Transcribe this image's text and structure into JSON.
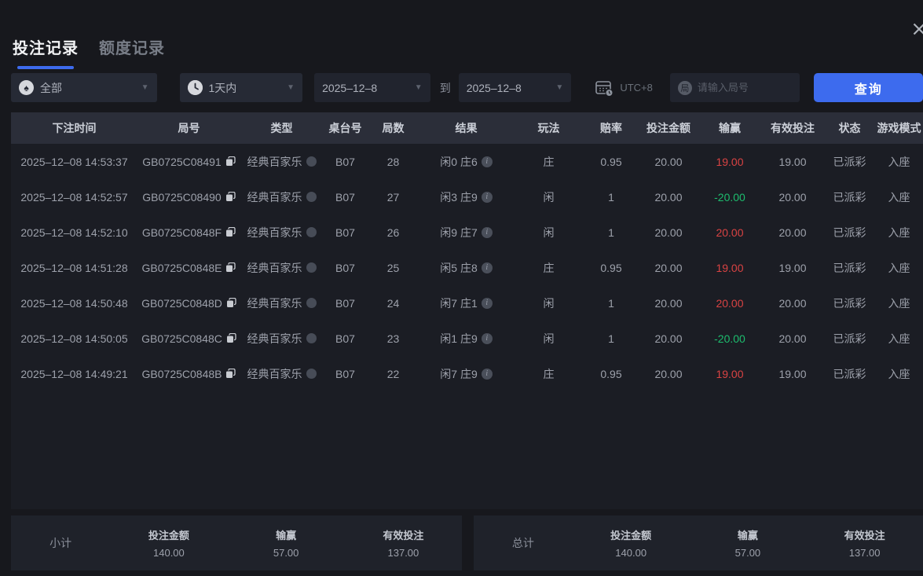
{
  "tabs": [
    {
      "label": "投注记录",
      "active": true
    },
    {
      "label": "额度记录",
      "active": false
    }
  ],
  "filters": {
    "game_type": "全部",
    "time_range": "1天内",
    "date_from": "2025–12–8",
    "to_label": "到",
    "date_to": "2025–12–8",
    "timezone": "UTC+8",
    "round_placeholder": "请输入局号",
    "round_icon_char": "局",
    "query_label": "查询"
  },
  "table": {
    "columns": [
      "下注时间",
      "局号",
      "类型",
      "桌台号",
      "局数",
      "结果",
      "玩法",
      "赔率",
      "投注金额",
      "输赢",
      "有效投注",
      "状态",
      "游戏模式"
    ],
    "rows": [
      {
        "time": "2025–12–08 14:53:37",
        "round_id": "GB0725C08491",
        "type": "经典百家乐",
        "table_no": "B07",
        "rounds": "28",
        "result": "闲0 庄6",
        "play": "庄",
        "odds": "0.95",
        "bet": "20.00",
        "winloss": "19.00",
        "winloss_sign": "win",
        "valid": "19.00",
        "status": "已派彩",
        "mode": "入座"
      },
      {
        "time": "2025–12–08 14:52:57",
        "round_id": "GB0725C08490",
        "type": "经典百家乐",
        "table_no": "B07",
        "rounds": "27",
        "result": "闲3 庄9",
        "play": "闲",
        "odds": "1",
        "bet": "20.00",
        "winloss": "-20.00",
        "winloss_sign": "loss",
        "valid": "20.00",
        "status": "已派彩",
        "mode": "入座"
      },
      {
        "time": "2025–12–08 14:52:10",
        "round_id": "GB0725C0848F",
        "type": "经典百家乐",
        "table_no": "B07",
        "rounds": "26",
        "result": "闲9 庄7",
        "play": "闲",
        "odds": "1",
        "bet": "20.00",
        "winloss": "20.00",
        "winloss_sign": "win",
        "valid": "20.00",
        "status": "已派彩",
        "mode": "入座"
      },
      {
        "time": "2025–12–08 14:51:28",
        "round_id": "GB0725C0848E",
        "type": "经典百家乐",
        "table_no": "B07",
        "rounds": "25",
        "result": "闲5 庄8",
        "play": "庄",
        "odds": "0.95",
        "bet": "20.00",
        "winloss": "19.00",
        "winloss_sign": "win",
        "valid": "19.00",
        "status": "已派彩",
        "mode": "入座"
      },
      {
        "time": "2025–12–08 14:50:48",
        "round_id": "GB0725C0848D",
        "type": "经典百家乐",
        "table_no": "B07",
        "rounds": "24",
        "result": "闲7 庄1",
        "play": "闲",
        "odds": "1",
        "bet": "20.00",
        "winloss": "20.00",
        "winloss_sign": "win",
        "valid": "20.00",
        "status": "已派彩",
        "mode": "入座"
      },
      {
        "time": "2025–12–08 14:50:05",
        "round_id": "GB0725C0848C",
        "type": "经典百家乐",
        "table_no": "B07",
        "rounds": "23",
        "result": "闲1 庄9",
        "play": "闲",
        "odds": "1",
        "bet": "20.00",
        "winloss": "-20.00",
        "winloss_sign": "loss",
        "valid": "20.00",
        "status": "已派彩",
        "mode": "入座"
      },
      {
        "time": "2025–12–08 14:49:21",
        "round_id": "GB0725C0848B",
        "type": "经典百家乐",
        "table_no": "B07",
        "rounds": "22",
        "result": "闲7 庄9",
        "play": "庄",
        "odds": "0.95",
        "bet": "20.00",
        "winloss": "19.00",
        "winloss_sign": "win",
        "valid": "19.00",
        "status": "已派彩",
        "mode": "入座"
      }
    ]
  },
  "summary": {
    "subtotal": {
      "label": "小计",
      "bet_label": "投注金额",
      "bet": "140.00",
      "winloss_label": "输赢",
      "winloss": "57.00",
      "valid_label": "有效投注",
      "valid": "137.00"
    },
    "total": {
      "label": "总计",
      "bet_label": "投注金额",
      "bet": "140.00",
      "winloss_label": "输赢",
      "winloss": "57.00",
      "valid_label": "有效投注",
      "valid": "137.00"
    }
  },
  "colors": {
    "accent": "#3d6bee",
    "win": "#d94343",
    "loss": "#1dbd6e"
  }
}
